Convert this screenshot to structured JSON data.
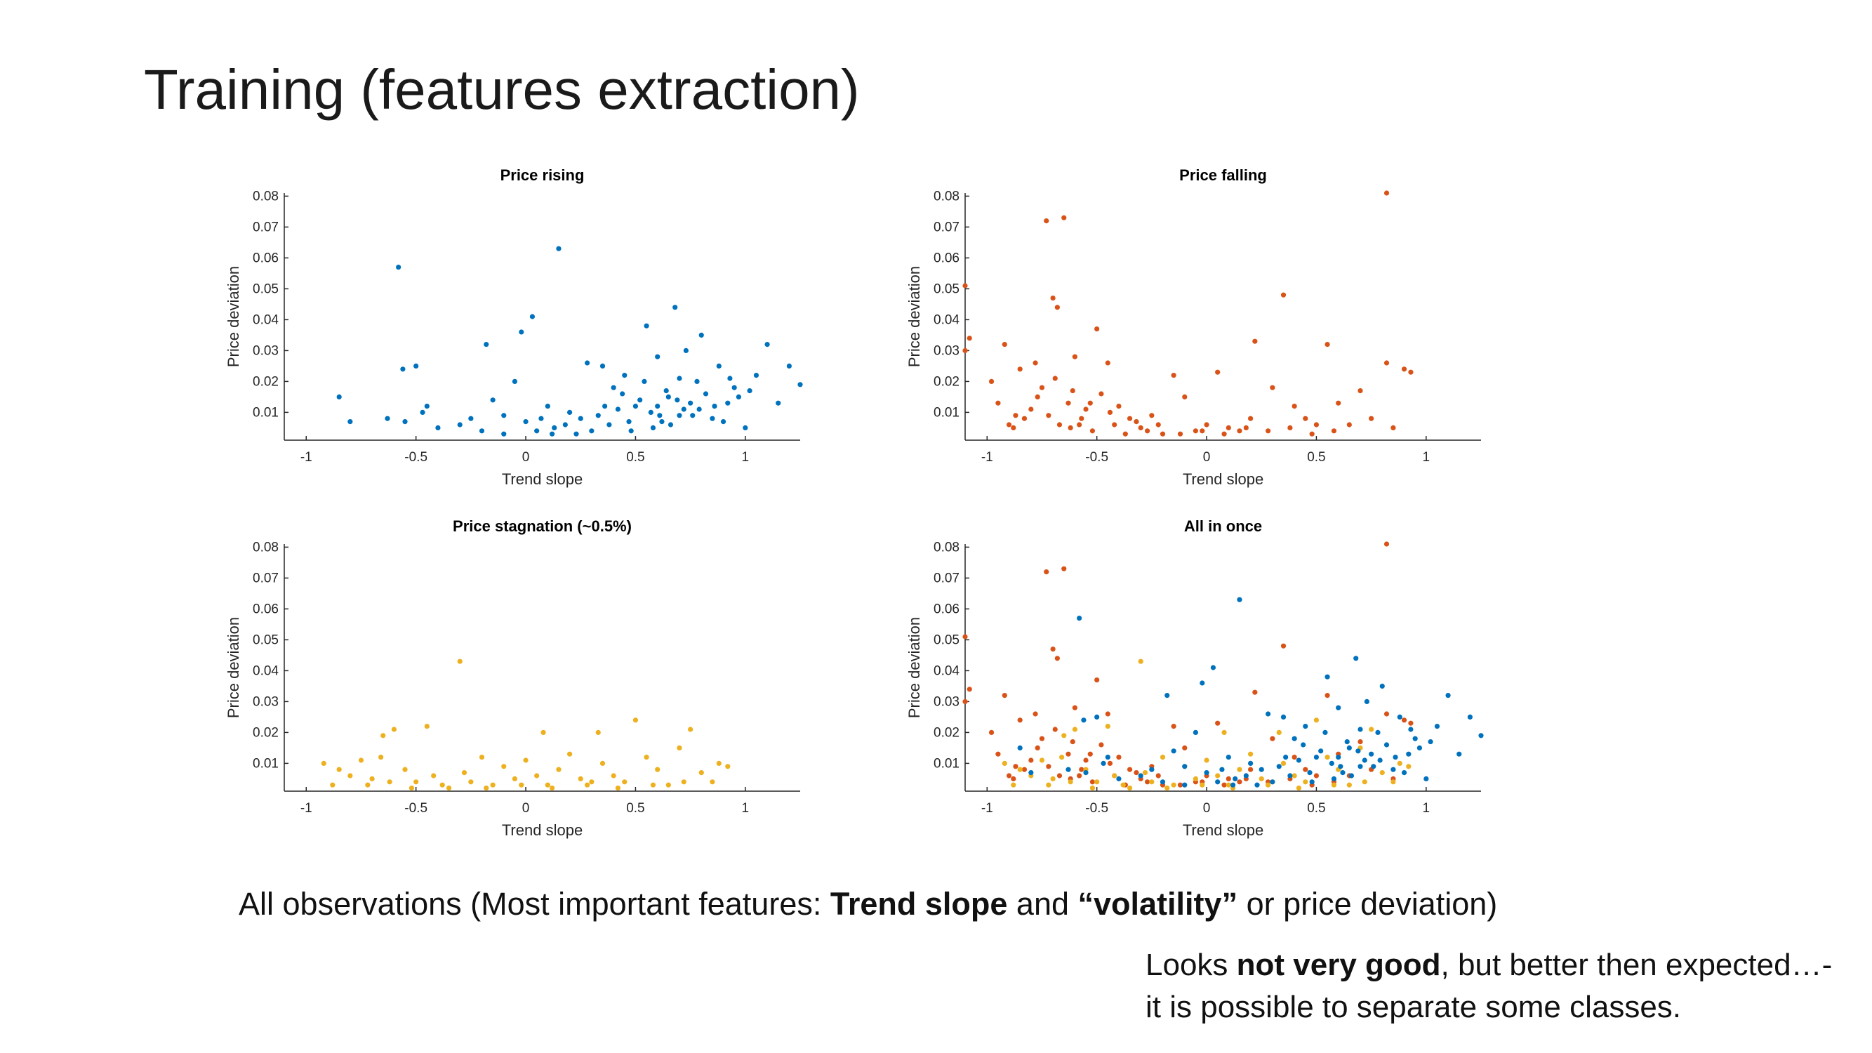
{
  "slide": {
    "title": "Training (features extraction)",
    "caption": {
      "pre": "All observations (Most important features: ",
      "b1": "Trend slope",
      "mid": "  and ",
      "b2": "“volatility”",
      "post": " or price deviation)"
    },
    "note": {
      "pre": "Looks ",
      "bold": "not very good",
      "line1_post": ", but better then expected…-",
      "line2": "it is possible to separate some classes."
    }
  },
  "colors": {
    "rising": "#0072BD",
    "falling": "#D95319",
    "stagnation": "#EDB120",
    "axis": "#262626"
  },
  "chart_data": [
    {
      "type": "scatter",
      "title": "Price rising",
      "xlabel": "Trend slope",
      "ylabel": "Price deviation",
      "xlim": [
        -1.1,
        1.25
      ],
      "ylim": [
        0.001,
        0.081
      ],
      "xticks": [
        -1,
        -0.5,
        0,
        0.5,
        1
      ],
      "xticklabels": [
        "-1",
        "-0.5",
        "0",
        "0.5",
        "1"
      ],
      "yticks": [
        0.01,
        0.02,
        0.03,
        0.04,
        0.05,
        0.06,
        0.07,
        0.08
      ],
      "yticklabels": [
        "0.01",
        "0.02",
        "0.03",
        "0.04",
        "0.05",
        "0.06",
        "0.07",
        "0.08"
      ],
      "series": [
        {
          "color": "#0072BD",
          "points": [
            [
              -0.85,
              0.015
            ],
            [
              -0.8,
              0.007
            ],
            [
              -0.63,
              0.008
            ],
            [
              -0.58,
              0.057
            ],
            [
              -0.56,
              0.024
            ],
            [
              -0.5,
              0.025
            ],
            [
              -0.47,
              0.01
            ],
            [
              -0.45,
              0.012
            ],
            [
              -0.55,
              0.007
            ],
            [
              -0.4,
              0.005
            ],
            [
              -0.3,
              0.006
            ],
            [
              -0.25,
              0.008
            ],
            [
              -0.18,
              0.032
            ],
            [
              -0.15,
              0.014
            ],
            [
              -0.1,
              0.009
            ],
            [
              -0.05,
              0.02
            ],
            [
              -0.02,
              0.036
            ],
            [
              0.03,
              0.041
            ],
            [
              0.07,
              0.008
            ],
            [
              0.1,
              0.012
            ],
            [
              0.13,
              0.005
            ],
            [
              0.15,
              0.063
            ],
            [
              0.2,
              0.01
            ],
            [
              0.23,
              0.003
            ],
            [
              0.28,
              0.026
            ],
            [
              0.35,
              0.025
            ],
            [
              0.4,
              0.018
            ],
            [
              0.45,
              0.022
            ],
            [
              0.5,
              0.012
            ],
            [
              0.55,
              0.038
            ],
            [
              0.6,
              0.028
            ],
            [
              0.62,
              0.007
            ],
            [
              0.65,
              0.015
            ],
            [
              0.68,
              0.044
            ],
            [
              0.7,
              0.009
            ],
            [
              0.73,
              0.03
            ],
            [
              0.78,
              0.02
            ],
            [
              0.8,
              0.035
            ],
            [
              0.85,
              0.008
            ],
            [
              0.88,
              0.025
            ],
            [
              0.92,
              0.013
            ],
            [
              0.95,
              0.018
            ],
            [
              1.0,
              0.005
            ],
            [
              1.05,
              0.022
            ],
            [
              1.1,
              0.032
            ],
            [
              1.15,
              0.013
            ],
            [
              1.2,
              0.025
            ],
            [
              1.25,
              0.019
            ],
            [
              0.3,
              0.004
            ],
            [
              0.33,
              0.009
            ],
            [
              0.38,
              0.006
            ],
            [
              0.42,
              0.011
            ],
            [
              0.47,
              0.007
            ],
            [
              0.52,
              0.014
            ],
            [
              0.57,
              0.01
            ],
            [
              0.6,
              0.012
            ],
            [
              0.66,
              0.006
            ],
            [
              0.72,
              0.011
            ],
            [
              0.75,
              0.013
            ],
            [
              0.82,
              0.016
            ],
            [
              0.9,
              0.007
            ],
            [
              0.97,
              0.015
            ],
            [
              -0.2,
              0.004
            ],
            [
              -0.1,
              0.003
            ],
            [
              0.0,
              0.007
            ],
            [
              0.05,
              0.004
            ],
            [
              0.12,
              0.003
            ],
            [
              0.18,
              0.006
            ],
            [
              0.25,
              0.008
            ],
            [
              0.48,
              0.004
            ],
            [
              0.58,
              0.005
            ],
            [
              0.64,
              0.017
            ],
            [
              0.7,
              0.021
            ],
            [
              0.76,
              0.009
            ],
            [
              0.86,
              0.012
            ],
            [
              0.93,
              0.021
            ],
            [
              1.02,
              0.017
            ],
            [
              0.36,
              0.012
            ],
            [
              0.44,
              0.016
            ],
            [
              0.54,
              0.02
            ],
            [
              0.61,
              0.009
            ],
            [
              0.69,
              0.014
            ],
            [
              0.79,
              0.011
            ]
          ]
        }
      ]
    },
    {
      "type": "scatter",
      "title": "Price falling",
      "xlabel": "Trend slope",
      "ylabel": "Price deviation",
      "xlim": [
        -1.1,
        1.25
      ],
      "ylim": [
        0.001,
        0.081
      ],
      "xticks": [
        -1,
        -0.5,
        0,
        0.5,
        1
      ],
      "xticklabels": [
        "-1",
        "-0.5",
        "0",
        "0.5",
        "1"
      ],
      "yticks": [
        0.01,
        0.02,
        0.03,
        0.04,
        0.05,
        0.06,
        0.07,
        0.08
      ],
      "yticklabels": [
        "0.01",
        "0.02",
        "0.03",
        "0.04",
        "0.05",
        "0.06",
        "0.07",
        "0.08"
      ],
      "series": [
        {
          "color": "#D95319",
          "points": [
            [
              -1.1,
              0.051
            ],
            [
              -1.08,
              0.034
            ],
            [
              -1.1,
              0.03
            ],
            [
              -0.98,
              0.02
            ],
            [
              -0.95,
              0.013
            ],
            [
              -0.92,
              0.032
            ],
            [
              -0.9,
              0.006
            ],
            [
              -0.87,
              0.009
            ],
            [
              -0.85,
              0.024
            ],
            [
              -0.8,
              0.011
            ],
            [
              -0.78,
              0.026
            ],
            [
              -0.75,
              0.018
            ],
            [
              -0.73,
              0.072
            ],
            [
              -0.7,
              0.047
            ],
            [
              -0.68,
              0.044
            ],
            [
              -0.65,
              0.073
            ],
            [
              -0.63,
              0.013
            ],
            [
              -0.6,
              0.028
            ],
            [
              -0.58,
              0.006
            ],
            [
              -0.55,
              0.011
            ],
            [
              -0.5,
              0.037
            ],
            [
              -0.48,
              0.016
            ],
            [
              -0.45,
              0.026
            ],
            [
              -0.4,
              0.012
            ],
            [
              -0.35,
              0.008
            ],
            [
              -0.3,
              0.005
            ],
            [
              -0.25,
              0.009
            ],
            [
              -0.2,
              0.003
            ],
            [
              -0.15,
              0.022
            ],
            [
              -0.1,
              0.015
            ],
            [
              -0.05,
              0.004
            ],
            [
              0.0,
              0.006
            ],
            [
              0.05,
              0.023
            ],
            [
              0.1,
              0.005
            ],
            [
              0.15,
              0.004
            ],
            [
              0.2,
              0.008
            ],
            [
              0.22,
              0.033
            ],
            [
              0.3,
              0.018
            ],
            [
              0.35,
              0.048
            ],
            [
              0.4,
              0.012
            ],
            [
              0.45,
              0.008
            ],
            [
              0.5,
              0.006
            ],
            [
              0.55,
              0.032
            ],
            [
              0.6,
              0.013
            ],
            [
              0.65,
              0.006
            ],
            [
              0.7,
              0.017
            ],
            [
              0.75,
              0.008
            ],
            [
              0.82,
              0.081
            ],
            [
              0.82,
              0.026
            ],
            [
              0.85,
              0.005
            ],
            [
              0.9,
              0.024
            ],
            [
              0.93,
              0.023
            ],
            [
              -0.88,
              0.005
            ],
            [
              -0.83,
              0.008
            ],
            [
              -0.72,
              0.009
            ],
            [
              -0.67,
              0.006
            ],
            [
              -0.62,
              0.005
            ],
            [
              -0.57,
              0.008
            ],
            [
              -0.52,
              0.004
            ],
            [
              -0.42,
              0.006
            ],
            [
              -0.37,
              0.003
            ],
            [
              -0.32,
              0.007
            ],
            [
              -0.27,
              0.004
            ],
            [
              -0.22,
              0.006
            ],
            [
              -0.12,
              0.003
            ],
            [
              -0.02,
              0.004
            ],
            [
              0.08,
              0.003
            ],
            [
              0.18,
              0.005
            ],
            [
              0.28,
              0.004
            ],
            [
              0.38,
              0.005
            ],
            [
              0.48,
              0.003
            ],
            [
              0.58,
              0.004
            ],
            [
              -0.77,
              0.015
            ],
            [
              -0.69,
              0.021
            ],
            [
              -0.61,
              0.017
            ],
            [
              -0.53,
              0.013
            ],
            [
              -0.44,
              0.01
            ]
          ]
        }
      ]
    },
    {
      "type": "scatter",
      "title": "Price stagnation (~0.5%)",
      "xlabel": "Trend slope",
      "ylabel": "Price deviation",
      "xlim": [
        -1.1,
        1.25
      ],
      "ylim": [
        0.001,
        0.081
      ],
      "xticks": [
        -1,
        -0.5,
        0,
        0.5,
        1
      ],
      "xticklabels": [
        "-1",
        "-0.5",
        "0",
        "0.5",
        "1"
      ],
      "yticks": [
        0.01,
        0.02,
        0.03,
        0.04,
        0.05,
        0.06,
        0.07,
        0.08
      ],
      "yticklabels": [
        "0.01",
        "0.02",
        "0.03",
        "0.04",
        "0.05",
        "0.06",
        "0.07",
        "0.08"
      ],
      "series": [
        {
          "color": "#EDB120",
          "points": [
            [
              -0.92,
              0.01
            ],
            [
              -0.85,
              0.008
            ],
            [
              -0.8,
              0.006
            ],
            [
              -0.75,
              0.011
            ],
            [
              -0.7,
              0.005
            ],
            [
              -0.65,
              0.019
            ],
            [
              -0.6,
              0.021
            ],
            [
              -0.55,
              0.008
            ],
            [
              -0.5,
              0.004
            ],
            [
              -0.45,
              0.022
            ],
            [
              -0.42,
              0.006
            ],
            [
              -0.38,
              0.003
            ],
            [
              -0.3,
              0.043
            ],
            [
              -0.28,
              0.007
            ],
            [
              -0.25,
              0.004
            ],
            [
              -0.2,
              0.012
            ],
            [
              -0.15,
              0.003
            ],
            [
              -0.1,
              0.009
            ],
            [
              -0.05,
              0.005
            ],
            [
              0.0,
              0.011
            ],
            [
              0.05,
              0.006
            ],
            [
              0.08,
              0.02
            ],
            [
              0.1,
              0.003
            ],
            [
              0.15,
              0.008
            ],
            [
              0.2,
              0.013
            ],
            [
              0.25,
              0.005
            ],
            [
              0.3,
              0.004
            ],
            [
              0.35,
              0.01
            ],
            [
              0.4,
              0.006
            ],
            [
              0.45,
              0.004
            ],
            [
              0.5,
              0.024
            ],
            [
              0.55,
              0.012
            ],
            [
              0.6,
              0.008
            ],
            [
              0.65,
              0.003
            ],
            [
              0.7,
              0.015
            ],
            [
              0.75,
              0.021
            ],
            [
              0.8,
              0.007
            ],
            [
              0.85,
              0.004
            ],
            [
              0.88,
              0.01
            ],
            [
              0.92,
              0.009
            ],
            [
              -0.88,
              0.003
            ],
            [
              -0.72,
              0.003
            ],
            [
              -0.62,
              0.004
            ],
            [
              -0.52,
              0.002
            ],
            [
              -0.35,
              0.002
            ],
            [
              -0.18,
              0.002
            ],
            [
              -0.02,
              0.003
            ],
            [
              0.12,
              0.002
            ],
            [
              0.28,
              0.003
            ],
            [
              0.42,
              0.002
            ],
            [
              0.58,
              0.003
            ],
            [
              0.72,
              0.004
            ],
            [
              0.33,
              0.02
            ],
            [
              -0.66,
              0.012
            ]
          ]
        }
      ]
    },
    {
      "type": "scatter",
      "title": "All in once",
      "xlabel": "Trend slope",
      "ylabel": "Price deviation",
      "xlim": [
        -1.1,
        1.25
      ],
      "ylim": [
        0.001,
        0.081
      ],
      "xticks": [
        -1,
        -0.5,
        0,
        0.5,
        1
      ],
      "xticklabels": [
        "-1",
        "-0.5",
        "0",
        "0.5",
        "1"
      ],
      "yticks": [
        0.01,
        0.02,
        0.03,
        0.04,
        0.05,
        0.06,
        0.07,
        0.08
      ],
      "yticklabels": [
        "0.01",
        "0.02",
        "0.03",
        "0.04",
        "0.05",
        "0.06",
        "0.07",
        "0.08"
      ],
      "series": [
        {
          "ref": 1
        },
        {
          "ref": 2
        },
        {
          "ref": 0
        }
      ]
    }
  ]
}
